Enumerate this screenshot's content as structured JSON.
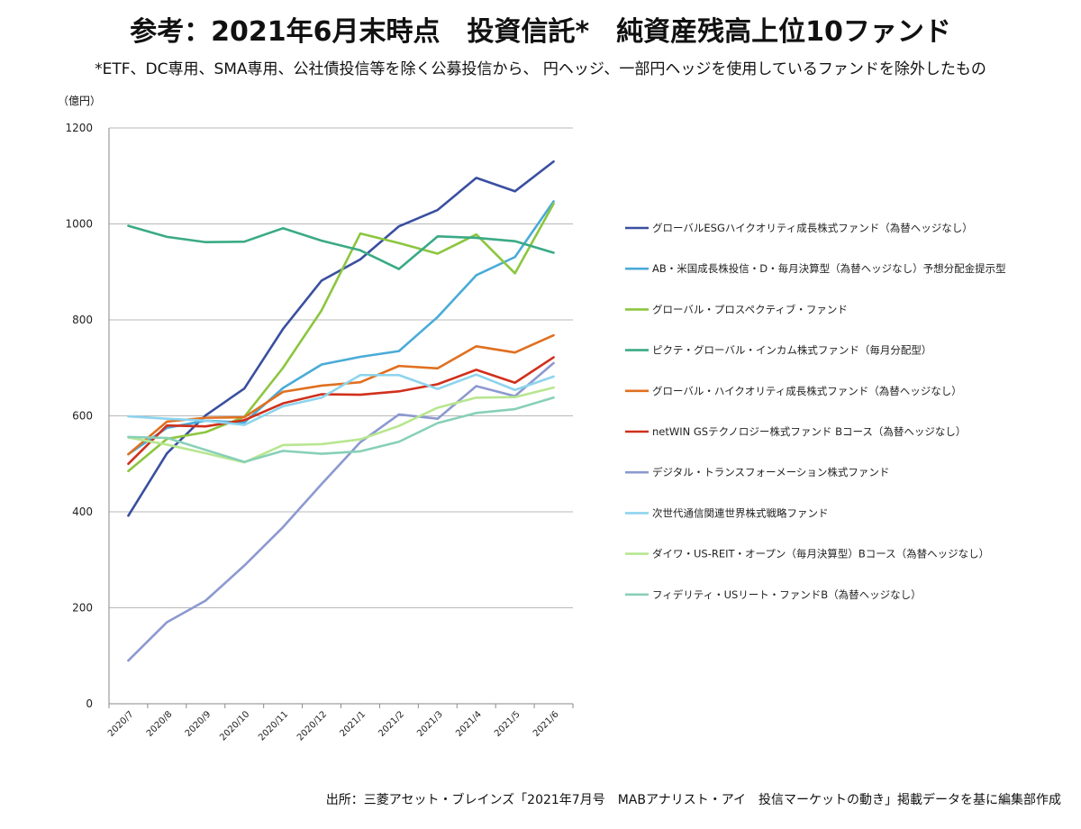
{
  "header": {
    "title": "参考：2021年6月末時点　投資信託*　純資産残高上位10ファンド",
    "subtitle": "*ETF、DC専用、SMA専用、公社債投信等を除く公募投信から、 円ヘッジ、一部円ヘッジを使用しているファンドを除外したもの"
  },
  "footer": {
    "source": "出所：三菱アセット・ブレインズ「2021年7月号　MABアナリスト・アイ　投信マーケットの動き」掲載データを基に編集部作成"
  },
  "chart_data": {
    "type": "line",
    "title": "",
    "unit_label": "（億円）",
    "xlabel": "",
    "ylabel": "",
    "ylim": [
      0,
      1200
    ],
    "yticks": [
      0,
      200,
      400,
      600,
      800,
      1000,
      1200
    ],
    "grid": true,
    "legend_position": "right",
    "categories": [
      "2020/7",
      "2020/8",
      "2020/9",
      "2020/10",
      "2020/11",
      "2020/12",
      "2021/1",
      "2021/2",
      "2021/3",
      "2021/4",
      "2021/5",
      "2021/6"
    ],
    "series": [
      {
        "name": "グローバルESGハイクオリティ成長株式ファンド（為替ヘッジなし）",
        "color": "#3a4fa0",
        "values": [
          392,
          522,
          601,
          657,
          781,
          882,
          926,
          995,
          1029,
          1096,
          1068,
          1130
        ]
      },
      {
        "name": "AB・米国成長株投信・D・毎月決算型（為替ヘッジなし）予想分配金提示型",
        "color": "#4aabd8",
        "values": [
          520,
          575,
          590,
          586,
          658,
          707,
          723,
          735,
          806,
          893,
          931,
          1047
        ]
      },
      {
        "name": "グローバル・プロスペクティブ・ファンド",
        "color": "#8cc63f",
        "values": [
          485,
          552,
          566,
          598,
          700,
          820,
          980,
          960,
          938,
          978,
          897,
          1042
        ]
      },
      {
        "name": "ピクテ・グローバル・インカム株式ファンド（毎月分配型）",
        "color": "#3aaa86",
        "values": [
          996,
          973,
          962,
          963,
          991,
          965,
          945,
          906,
          974,
          971,
          964,
          940
        ]
      },
      {
        "name": "グローバル・ハイクオリティ成長株式ファンド（為替ヘッジなし）",
        "color": "#e07020",
        "values": [
          520,
          588,
          596,
          597,
          650,
          663,
          670,
          704,
          699,
          745,
          732,
          768
        ]
      },
      {
        "name": "netWIN GSテクノロジー株式ファンド Bコース（為替ヘッジなし）",
        "color": "#d0301c",
        "values": [
          500,
          580,
          578,
          591,
          626,
          645,
          644,
          651,
          666,
          696,
          669,
          722
        ]
      },
      {
        "name": "デジタル・トランスフォーメーション株式ファンド",
        "color": "#8c99d0",
        "values": [
          90,
          170,
          215,
          288,
          368,
          458,
          545,
          603,
          594,
          662,
          641,
          710
        ]
      },
      {
        "name": "次世代通信関連世界株式戦略ファンド",
        "color": "#8dd4ee",
        "values": [
          599,
          594,
          590,
          581,
          620,
          638,
          685,
          685,
          656,
          686,
          654,
          682
        ]
      },
      {
        "name": "ダイワ・US-REIT・オープン（毎月決算型）Bコース（為替ヘッジなし）",
        "color": "#b8e690",
        "values": [
          555,
          540,
          522,
          503,
          539,
          541,
          551,
          579,
          617,
          638,
          639,
          659
        ]
      },
      {
        "name": "フィデリティ・USリート・ファンドB（為替ヘッジなし）",
        "color": "#88d0b8",
        "values": [
          556,
          554,
          529,
          504,
          527,
          521,
          526,
          546,
          585,
          606,
          614,
          638
        ]
      }
    ]
  }
}
